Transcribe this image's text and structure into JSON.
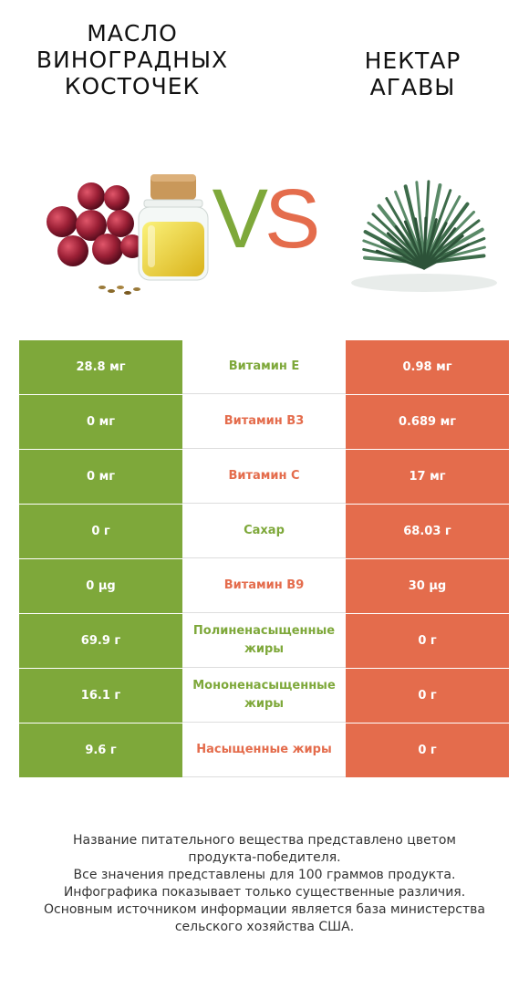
{
  "left_product": {
    "name_lines": [
      "Масло",
      "виноградных",
      "косточек"
    ],
    "color": "#7ea83a"
  },
  "right_product": {
    "name_lines": [
      "Нектар",
      "агавы"
    ],
    "color": "#e46c4c"
  },
  "vs": {
    "v": "V",
    "s": "S"
  },
  "rows": [
    {
      "left": "28.8 мг",
      "nutrient": "Витамин E",
      "right": "0.98 мг",
      "winner": "left"
    },
    {
      "left": "0 мг",
      "nutrient": "Витамин B3",
      "right": "0.689 мг",
      "winner": "right"
    },
    {
      "left": "0 мг",
      "nutrient": "Витамин C",
      "right": "17 мг",
      "winner": "right"
    },
    {
      "left": "0 г",
      "nutrient": "Сахар",
      "right": "68.03 г",
      "winner": "left"
    },
    {
      "left": "0 µg",
      "nutrient": "Витамин B9",
      "right": "30 µg",
      "winner": "right"
    },
    {
      "left": "69.9 г",
      "nutrient": "Полиненасыщенные жиры",
      "right": "0 г",
      "winner": "left"
    },
    {
      "left": "16.1 г",
      "nutrient": "Мононенасыщенные жиры",
      "right": "0 г",
      "winner": "left"
    },
    {
      "left": "9.6 г",
      "nutrient": "Насыщенные жиры",
      "right": "0 г",
      "winner": "right"
    }
  ],
  "footnote": [
    "Название питательного вещества представлено цветом",
    "продукта-победителя.",
    "Все значения представлены для 100 граммов продукта.",
    "Инфографика показывает только существенные различия.",
    "Основным источником информации является база министерства",
    "сельского хозяйства США."
  ]
}
